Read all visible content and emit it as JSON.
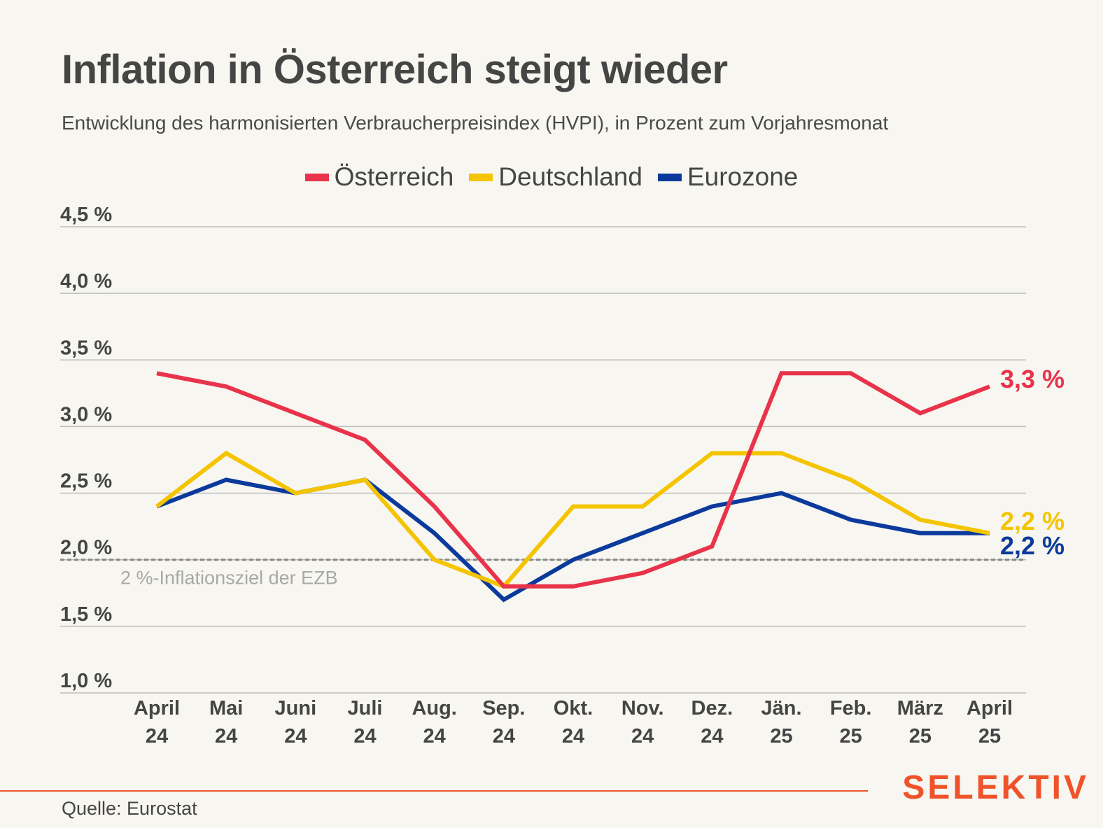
{
  "title": "Inflation in Österreich steigt wieder",
  "subtitle": "Entwicklung des harmonisierten Verbraucherpreisindex (HVPI), in Prozent zum Vorjahresmonat",
  "source": "Quelle: Eurostat",
  "brand": "SELEKTIV",
  "colors": {
    "background": "#f7f6f0",
    "brand": "#f0522a",
    "grid": "#bdbdbd",
    "reference": "#888888"
  },
  "chart_data": {
    "type": "line",
    "ylim": [
      1.0,
      4.5
    ],
    "grid": true,
    "legend": "top-center",
    "yticks": [
      {
        "value": 4.5,
        "label": "4,5 %"
      },
      {
        "value": 4.0,
        "label": "4,0 %"
      },
      {
        "value": 3.5,
        "label": "3,5 %"
      },
      {
        "value": 3.0,
        "label": "3,0 %"
      },
      {
        "value": 2.5,
        "label": "2,5 %"
      },
      {
        "value": 2.0,
        "label": "2,0 %"
      },
      {
        "value": 1.5,
        "label": "1,5 %"
      },
      {
        "value": 1.0,
        "label": "1,0 %"
      }
    ],
    "categories": [
      {
        "month": "April",
        "year": "24"
      },
      {
        "month": "Mai",
        "year": "24"
      },
      {
        "month": "Juni",
        "year": "24"
      },
      {
        "month": "Juli",
        "year": "24"
      },
      {
        "month": "Aug.",
        "year": "24"
      },
      {
        "month": "Sep.",
        "year": "24"
      },
      {
        "month": "Okt.",
        "year": "24"
      },
      {
        "month": "Nov.",
        "year": "24"
      },
      {
        "month": "Dez.",
        "year": "24"
      },
      {
        "month": "Jän.",
        "year": "25"
      },
      {
        "month": "Feb.",
        "year": "25"
      },
      {
        "month": "März",
        "year": "25"
      },
      {
        "month": "April",
        "year": "25"
      }
    ],
    "series": [
      {
        "name": "Österreich",
        "color": "#e8334a",
        "values": [
          3.4,
          3.3,
          3.1,
          2.9,
          2.4,
          1.8,
          1.8,
          1.9,
          2.1,
          3.4,
          3.4,
          3.1,
          3.3
        ],
        "end_label": "3,3 %"
      },
      {
        "name": "Deutschland",
        "color": "#f5c400",
        "values": [
          2.4,
          2.8,
          2.5,
          2.6,
          2.0,
          1.8,
          2.4,
          2.4,
          2.8,
          2.8,
          2.6,
          2.3,
          2.2
        ],
        "end_label": "2,2 %"
      },
      {
        "name": "Eurozone",
        "color": "#0b3a9c",
        "values": [
          2.4,
          2.6,
          2.5,
          2.6,
          2.2,
          1.7,
          2.0,
          2.2,
          2.4,
          2.5,
          2.3,
          2.2,
          2.2
        ],
        "end_label": "2,2 %"
      }
    ],
    "reference_line": {
      "value": 2.0,
      "label": "2 %-Inflationsziel der EZB"
    }
  }
}
